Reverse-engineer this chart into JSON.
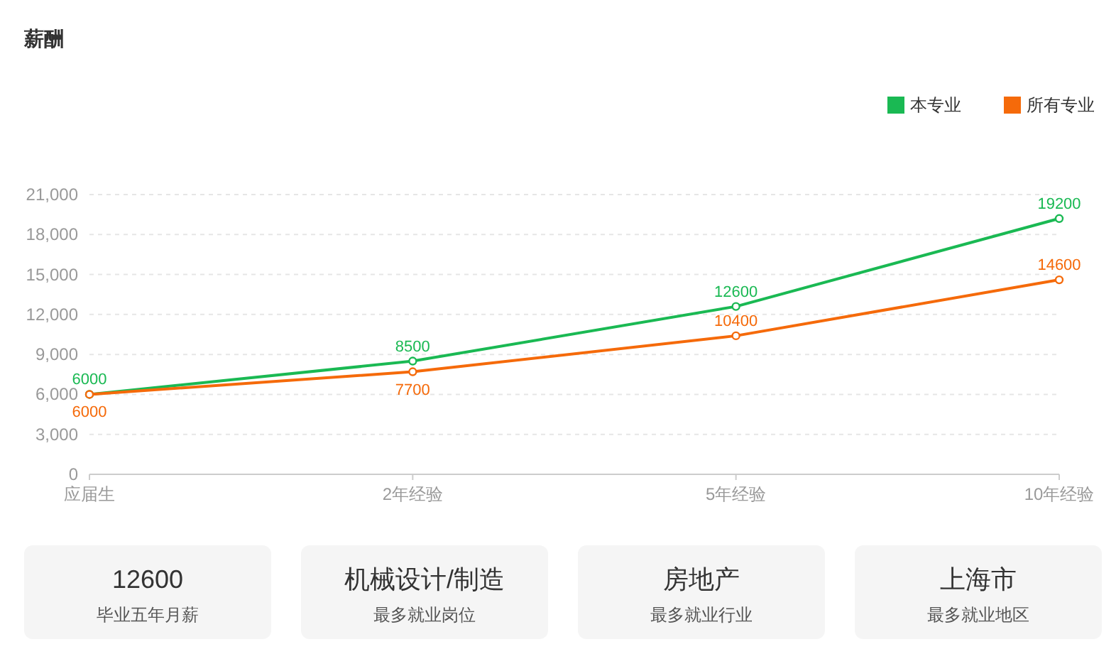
{
  "chart_data": [
    {
      "type": "line",
      "title": "薪酬",
      "categories": [
        "应届生",
        "2年经验",
        "5年经验",
        "10年经验"
      ],
      "series": [
        {
          "name": "本专业",
          "color": "#1ab953",
          "values": [
            6000,
            8500,
            12600,
            19200
          ]
        },
        {
          "name": "所有专业",
          "color": "#f56a0a",
          "values": [
            6000,
            7700,
            10400,
            14600
          ]
        }
      ],
      "ylim": [
        0,
        21000
      ],
      "yticks": [
        {
          "value": 0,
          "label": "0"
        },
        {
          "value": 3000,
          "label": "3,000"
        },
        {
          "value": 6000,
          "label": "6,000"
        },
        {
          "value": 9000,
          "label": "9,000"
        },
        {
          "value": 12000,
          "label": "12,000"
        },
        {
          "value": 15000,
          "label": "15,000"
        },
        {
          "value": 18000,
          "label": "18,000"
        },
        {
          "value": 21000,
          "label": "21,000"
        }
      ],
      "grid": "y",
      "legend": "top right",
      "marker": "circle",
      "data_labels": true
    },
    {
      "type": "other",
      "annotations": [
        "12600",
        "毕业五年月薪",
        "机械设计/制造",
        "最多就业岗位",
        "房地产",
        "最多就业行业",
        "上海市",
        "最多就业地区"
      ]
    }
  ]
}
